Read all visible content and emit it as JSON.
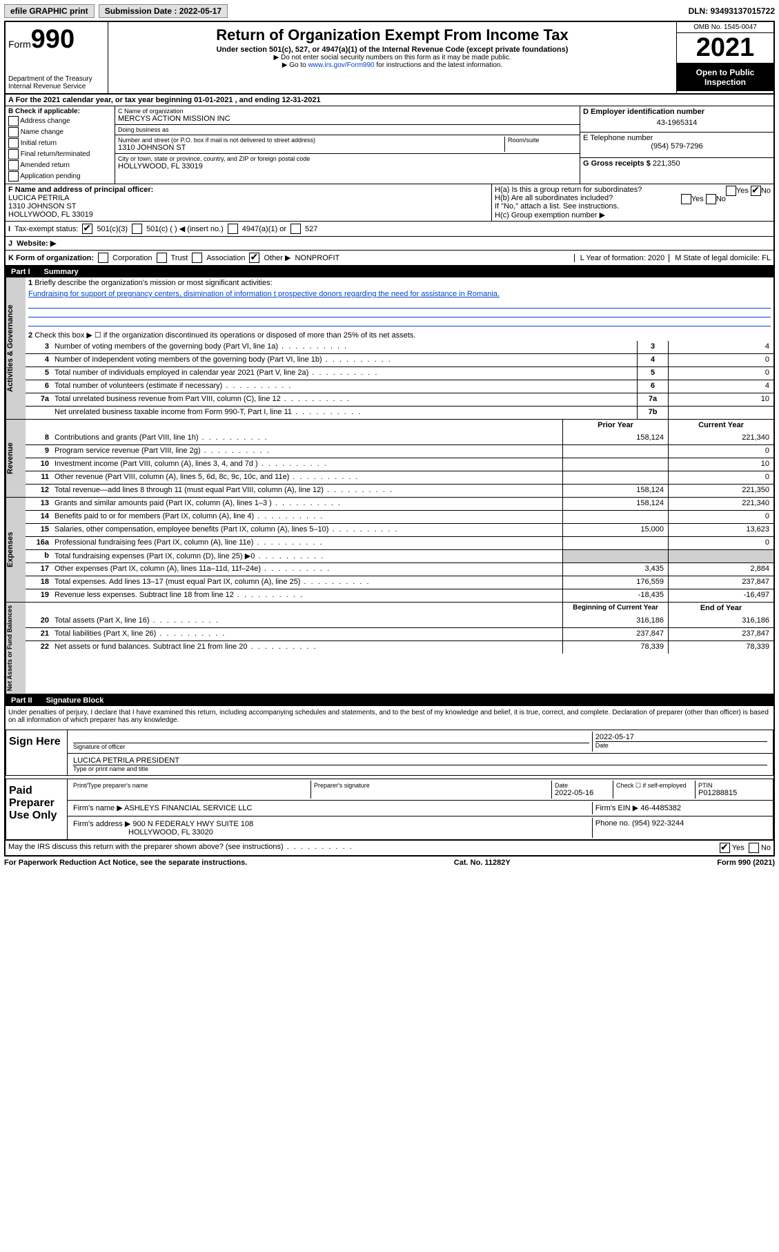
{
  "topbar": {
    "efile": "efile GRAPHIC print",
    "submission_label": "Submission Date : 2022-05-17",
    "dln": "DLN: 93493137015722"
  },
  "header": {
    "form_prefix": "Form",
    "form_number": "990",
    "dept": "Department of the Treasury",
    "irs": "Internal Revenue Service",
    "title": "Return of Organization Exempt From Income Tax",
    "subtitle": "Under section 501(c), 527, or 4947(a)(1) of the Internal Revenue Code (except private foundations)",
    "note1": "▶ Do not enter social security numbers on this form as it may be made public.",
    "note2_pre": "▶ Go to ",
    "note2_link": "www.irs.gov/Form990",
    "note2_post": " for instructions and the latest information.",
    "omb": "OMB No. 1545-0047",
    "year": "2021",
    "open": "Open to Public Inspection"
  },
  "rowA": "A For the 2021 calendar year, or tax year beginning 01-01-2021   , and ending 12-31-2021",
  "boxB": {
    "title": "B Check if applicable:",
    "items": [
      "Address change",
      "Name change",
      "Initial return",
      "Final return/terminated",
      "Amended return",
      "Application pending"
    ]
  },
  "boxC": {
    "name_label": "C Name of organization",
    "name": "MERCYS ACTION MISSION INC",
    "dba_label": "Doing business as",
    "dba": "",
    "addr_label": "Number and street (or P.O. box if mail is not delivered to street address)",
    "room_label": "Room/suite",
    "addr": "1310 JOHNSON ST",
    "city_label": "City or town, state or province, country, and ZIP or foreign postal code",
    "city": "HOLLYWOOD, FL  33019"
  },
  "boxD": {
    "label": "D Employer identification number",
    "value": "43-1965314"
  },
  "boxE": {
    "label": "E Telephone number",
    "value": "(954) 579-7296"
  },
  "boxG": {
    "label": "G Gross receipts $",
    "value": "221,350"
  },
  "boxF": {
    "label": "F Name and address of principal officer:",
    "name": "LUCICA PETRILA",
    "addr1": "1310 JOHNSON ST",
    "addr2": "HOLLYWOOD, FL  33019"
  },
  "boxH": {
    "ha": "H(a)  Is this a group return for subordinates?",
    "hb": "H(b)  Are all subordinates included?",
    "hnote": "If \"No,\" attach a list. See instructions.",
    "hc": "H(c)  Group exemption number ▶",
    "yes": "Yes",
    "no": "No"
  },
  "rowI": {
    "label": "Tax-exempt status:",
    "opts": [
      "501(c)(3)",
      "501(c) (  ) ◀ (insert no.)",
      "4947(a)(1) or",
      "527"
    ]
  },
  "rowJ": {
    "label": "Website: ▶",
    "value": ""
  },
  "rowK": {
    "label": "K Form of organization:",
    "opts": [
      "Corporation",
      "Trust",
      "Association",
      "Other ▶"
    ],
    "other_val": "NONPROFIT",
    "l": "L Year of formation: 2020",
    "m": "M State of legal domicile: FL"
  },
  "partI": {
    "label": "Part I",
    "title": "Summary"
  },
  "summary": {
    "side1": "Activities & Governance",
    "line1_label": "Briefly describe the organization's mission or most significant activities:",
    "line1_text": "Fundraising for support of pregnancy centers, disimination of information t prospective donors regarding the need for assistance in Romania.",
    "line2": "Check this box ▶ ☐  if the organization discontinued its operations or disposed of more than 25% of its net assets.",
    "lines_gov": [
      {
        "n": "3",
        "t": "Number of voting members of the governing body (Part VI, line 1a)",
        "box": "3",
        "v": "4"
      },
      {
        "n": "4",
        "t": "Number of independent voting members of the governing body (Part VI, line 1b)",
        "box": "4",
        "v": "0"
      },
      {
        "n": "5",
        "t": "Total number of individuals employed in calendar year 2021 (Part V, line 2a)",
        "box": "5",
        "v": "0"
      },
      {
        "n": "6",
        "t": "Total number of volunteers (estimate if necessary)",
        "box": "6",
        "v": "4"
      },
      {
        "n": "7a",
        "t": "Total unrelated business revenue from Part VIII, column (C), line 12",
        "box": "7a",
        "v": "10"
      },
      {
        "n": "",
        "t": "Net unrelated business taxable income from Form 990-T, Part I, line 11",
        "box": "7b",
        "v": ""
      }
    ],
    "side2": "Revenue",
    "col_prior": "Prior Year",
    "col_current": "Current Year",
    "lines_rev": [
      {
        "n": "8",
        "t": "Contributions and grants (Part VIII, line 1h)",
        "p": "158,124",
        "c": "221,340"
      },
      {
        "n": "9",
        "t": "Program service revenue (Part VIII, line 2g)",
        "p": "",
        "c": "0"
      },
      {
        "n": "10",
        "t": "Investment income (Part VIII, column (A), lines 3, 4, and 7d )",
        "p": "",
        "c": "10"
      },
      {
        "n": "11",
        "t": "Other revenue (Part VIII, column (A), lines 5, 6d, 8c, 9c, 10c, and 11e)",
        "p": "",
        "c": "0"
      },
      {
        "n": "12",
        "t": "Total revenue—add lines 8 through 11 (must equal Part VIII, column (A), line 12)",
        "p": "158,124",
        "c": "221,350"
      }
    ],
    "side3": "Expenses",
    "lines_exp": [
      {
        "n": "13",
        "t": "Grants and similar amounts paid (Part IX, column (A), lines 1–3 )",
        "p": "158,124",
        "c": "221,340"
      },
      {
        "n": "14",
        "t": "Benefits paid to or for members (Part IX, column (A), line 4)",
        "p": "",
        "c": "0"
      },
      {
        "n": "15",
        "t": "Salaries, other compensation, employee benefits (Part IX, column (A), lines 5–10)",
        "p": "15,000",
        "c": "13,623"
      },
      {
        "n": "16a",
        "t": "Professional fundraising fees (Part IX, column (A), line 11e)",
        "p": "",
        "c": "0"
      },
      {
        "n": "b",
        "t": "Total fundraising expenses (Part IX, column (D), line 25) ▶0",
        "p": "shade",
        "c": "shade"
      },
      {
        "n": "17",
        "t": "Other expenses (Part IX, column (A), lines 11a–11d, 11f–24e)",
        "p": "3,435",
        "c": "2,884"
      },
      {
        "n": "18",
        "t": "Total expenses. Add lines 13–17 (must equal Part IX, column (A), line 25)",
        "p": "176,559",
        "c": "237,847"
      },
      {
        "n": "19",
        "t": "Revenue less expenses. Subtract line 18 from line 12",
        "p": "-18,435",
        "c": "-16,497"
      }
    ],
    "side4": "Net Assets or Fund Balances",
    "col_begin": "Beginning of Current Year",
    "col_end": "End of Year",
    "lines_net": [
      {
        "n": "20",
        "t": "Total assets (Part X, line 16)",
        "p": "316,186",
        "c": "316,186"
      },
      {
        "n": "21",
        "t": "Total liabilities (Part X, line 26)",
        "p": "237,847",
        "c": "237,847"
      },
      {
        "n": "22",
        "t": "Net assets or fund balances. Subtract line 21 from line 20",
        "p": "78,339",
        "c": "78,339"
      }
    ]
  },
  "partII": {
    "label": "Part II",
    "title": "Signature Block"
  },
  "sig": {
    "declaration": "Under penalties of perjury, I declare that I have examined this return, including accompanying schedules and statements, and to the best of my knowledge and belief, it is true, correct, and complete. Declaration of preparer (other than officer) is based on all information of which preparer has any knowledge.",
    "sign_here": "Sign Here",
    "sig_officer": "Signature of officer",
    "date": "Date",
    "sig_date": "2022-05-17",
    "officer_name": "LUCICA PETRILA  PRESIDENT",
    "type_name": "Type or print name and title",
    "paid": "Paid Preparer Use Only",
    "prep_name_label": "Print/Type preparer's name",
    "prep_sig_label": "Preparer's signature",
    "prep_date_label": "Date",
    "prep_date": "2022-05-16",
    "check_if": "Check ☐ if self-employed",
    "ptin_label": "PTIN",
    "ptin": "P01288815",
    "firm_name_label": "Firm's name   ▶",
    "firm_name": "ASHLEYS FINANCIAL SERVICE LLC",
    "firm_ein_label": "Firm's EIN ▶",
    "firm_ein": "46-4485382",
    "firm_addr_label": "Firm's address ▶",
    "firm_addr": "900 N FEDERALY HWY SUITE 108",
    "firm_city": "HOLLYWOOD, FL  33020",
    "phone_label": "Phone no.",
    "phone": "(954) 922-3244",
    "may_irs": "May the IRS discuss this return with the preparer shown above? (see instructions)",
    "yes": "Yes",
    "no": "No"
  },
  "footer": {
    "paperwork": "For Paperwork Reduction Act Notice, see the separate instructions.",
    "cat": "Cat. No. 11282Y",
    "form": "Form 990 (2021)"
  }
}
